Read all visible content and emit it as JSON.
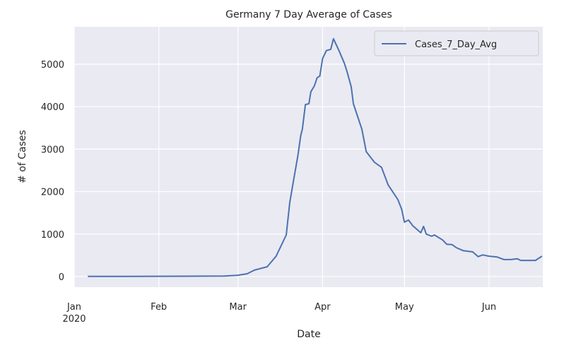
{
  "chart_data": {
    "type": "line",
    "title": "Germany 7 Day Average of Cases",
    "xlabel": "Date",
    "ylabel": "# of Cases",
    "x_units": "days since 2020-01-01",
    "xlim": [
      0,
      171.7
    ],
    "ylim": [
      -250,
      5880
    ],
    "grid": true,
    "legend_position": "top-right",
    "yticks": [
      0,
      1000,
      2000,
      3000,
      4000,
      5000
    ],
    "xticks": [
      {
        "day": 0,
        "label": "Jan",
        "sublabel": "2020"
      },
      {
        "day": 31,
        "label": "Feb"
      },
      {
        "day": 60,
        "label": "Mar"
      },
      {
        "day": 91,
        "label": "Apr"
      },
      {
        "day": 121,
        "label": "May"
      },
      {
        "day": 152,
        "label": "Jun"
      }
    ],
    "series": [
      {
        "name": "Cases_7_Day_Avg",
        "color": "#4c72b0",
        "x": [
          5,
          20,
          40,
          55,
          60,
          63.4,
          66,
          70.7,
          74,
          77.7,
          79,
          80.3,
          82,
          83,
          83.6,
          84.7,
          86,
          86.7,
          88,
          89,
          90,
          91,
          92.4,
          94,
          95,
          97,
          99,
          100,
          101.5,
          102.3,
          105.4,
          107,
          110,
          112.6,
          115,
          118.6,
          120,
          121,
          122.5,
          124,
          127,
          128,
          129,
          131,
          132,
          135,
          136.5,
          138.5,
          140,
          142.5,
          146,
          148,
          149.7,
          152,
          155,
          157.5,
          160,
          162.3,
          163.6,
          169,
          171.4
        ],
        "y": [
          3,
          5,
          8,
          12,
          30,
          66,
          150,
          230,
          480,
          980,
          1745,
          2240,
          2860,
          3320,
          3470,
          4050,
          4070,
          4350,
          4490,
          4680,
          4720,
          5130,
          5320,
          5350,
          5600,
          5320,
          5020,
          4820,
          4470,
          4070,
          3470,
          2940,
          2690,
          2570,
          2160,
          1810,
          1580,
          1280,
          1330,
          1200,
          1030,
          1180,
          1000,
          950,
          980,
          860,
          760,
          750,
          680,
          610,
          580,
          470,
          510,
          480,
          460,
          400,
          400,
          420,
          380,
          380,
          480
        ]
      }
    ]
  }
}
